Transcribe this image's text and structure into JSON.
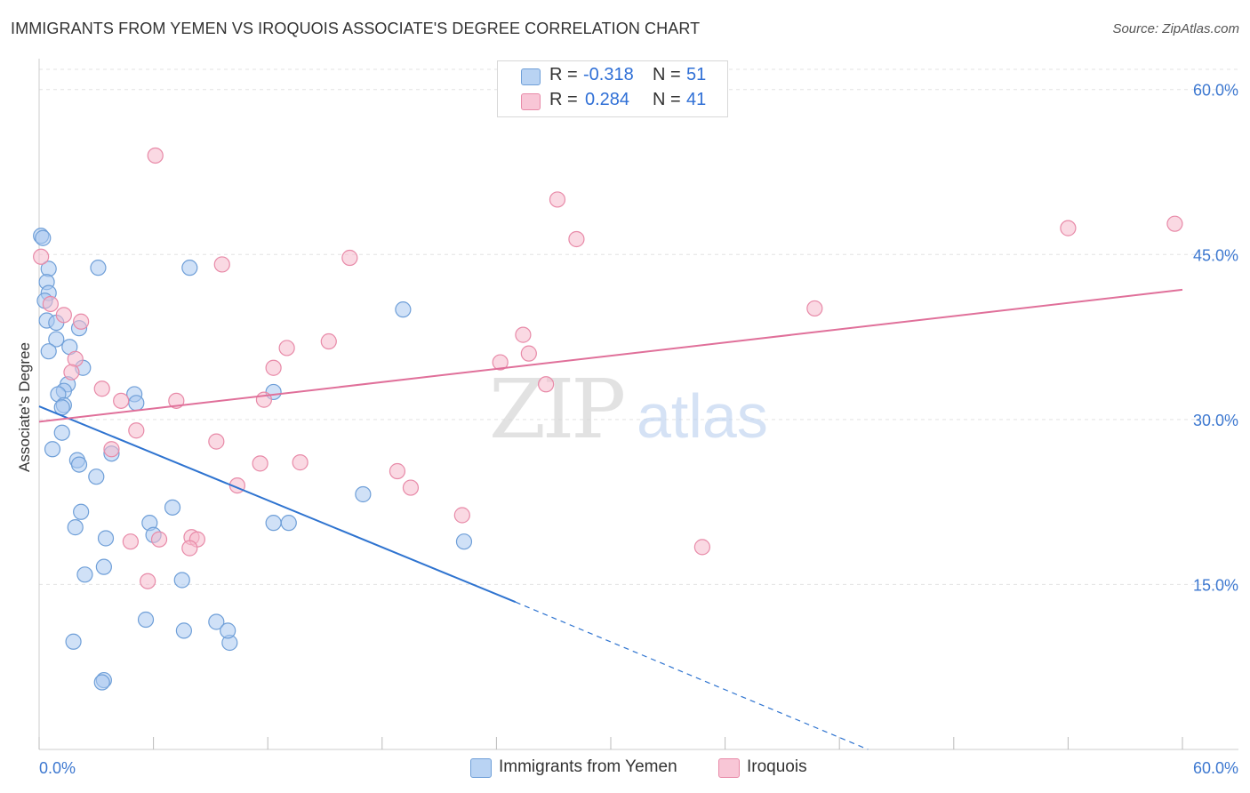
{
  "title": "IMMIGRANTS FROM YEMEN VS IROQUOIS ASSOCIATE'S DEGREE CORRELATION CHART",
  "source": "Source: ZipAtlas.com",
  "watermark": {
    "zip": "ZIP",
    "atlas": "atlas"
  },
  "legend_top": [
    {
      "r_label": "R =",
      "r_value": "-0.318",
      "n_label": "N =",
      "n_value": "51"
    },
    {
      "r_label": "R =",
      "r_value": "0.284",
      "n_label": "N =",
      "n_value": "41"
    }
  ],
  "legend_bottom": [
    {
      "label": "Immigrants from Yemen"
    },
    {
      "label": "Iroquois"
    }
  ],
  "colors": {
    "blue_fill": "#a9c8f0",
    "blue_stroke": "#6f9fd8",
    "blue_line": "#2f74d0",
    "pink_fill": "#f5b9cc",
    "pink_stroke": "#e88aa8",
    "pink_line": "#e0709a",
    "grid": "#e3e3e3",
    "tick_text": "#3d78d0"
  },
  "chart_data": {
    "type": "scatter",
    "title": "IMMIGRANTS FROM YEMEN VS IROQUOIS ASSOCIATE'S DEGREE CORRELATION CHART",
    "xlabel": "",
    "ylabel": "Associate's Degree",
    "xlim": [
      0,
      60
    ],
    "ylim": [
      0,
      62
    ],
    "x_tick_labels": [
      "0.0%",
      "60.0%"
    ],
    "y_ticks": [
      15,
      30,
      45,
      60
    ],
    "y_tick_labels": [
      "15.0%",
      "30.0%",
      "45.0%",
      "60.0%"
    ],
    "grid": true,
    "series": [
      {
        "name": "Immigrants from Yemen",
        "R": -0.318,
        "N": 51,
        "points": [
          [
            0.1,
            46.7
          ],
          [
            0.2,
            46.5
          ],
          [
            0.5,
            43.7
          ],
          [
            0.4,
            42.5
          ],
          [
            0.5,
            41.5
          ],
          [
            0.3,
            40.8
          ],
          [
            0.4,
            39.0
          ],
          [
            0.9,
            38.8
          ],
          [
            2.1,
            38.3
          ],
          [
            0.9,
            37.3
          ],
          [
            1.6,
            36.6
          ],
          [
            0.5,
            36.2
          ],
          [
            2.3,
            34.7
          ],
          [
            1.5,
            33.2
          ],
          [
            1.3,
            32.6
          ],
          [
            1.0,
            32.3
          ],
          [
            1.3,
            31.3
          ],
          [
            1.2,
            31.1
          ],
          [
            1.2,
            28.8
          ],
          [
            0.7,
            27.3
          ],
          [
            2.0,
            26.3
          ],
          [
            2.1,
            25.9
          ],
          [
            3.8,
            26.9
          ],
          [
            3.0,
            24.8
          ],
          [
            2.2,
            21.6
          ],
          [
            1.9,
            20.2
          ],
          [
            3.5,
            19.2
          ],
          [
            5.8,
            20.6
          ],
          [
            6.0,
            19.5
          ],
          [
            7.0,
            22.0
          ],
          [
            7.5,
            15.4
          ],
          [
            3.4,
            16.6
          ],
          [
            2.4,
            15.9
          ],
          [
            5.6,
            11.8
          ],
          [
            7.6,
            10.8
          ],
          [
            9.3,
            11.6
          ],
          [
            10.0,
            9.7
          ],
          [
            1.8,
            9.8
          ],
          [
            3.4,
            6.3
          ],
          [
            3.3,
            6.1
          ],
          [
            3.1,
            43.8
          ],
          [
            7.9,
            43.8
          ],
          [
            5.0,
            32.3
          ],
          [
            5.1,
            31.5
          ],
          [
            12.3,
            32.5
          ],
          [
            12.3,
            20.6
          ],
          [
            13.1,
            20.6
          ],
          [
            19.1,
            40.0
          ],
          [
            17.0,
            23.2
          ],
          [
            22.3,
            18.9
          ],
          [
            9.9,
            10.8
          ]
        ]
      },
      {
        "name": "Iroquois",
        "R": 0.284,
        "N": 41,
        "points": [
          [
            0.1,
            44.8
          ],
          [
            0.6,
            40.5
          ],
          [
            1.3,
            39.5
          ],
          [
            2.2,
            38.9
          ],
          [
            1.9,
            35.5
          ],
          [
            1.7,
            34.3
          ],
          [
            3.3,
            32.8
          ],
          [
            4.3,
            31.7
          ],
          [
            5.1,
            29.0
          ],
          [
            3.8,
            27.3
          ],
          [
            7.2,
            31.7
          ],
          [
            9.3,
            28.0
          ],
          [
            10.4,
            24.0
          ],
          [
            11.6,
            26.0
          ],
          [
            12.3,
            34.7
          ],
          [
            11.8,
            31.8
          ],
          [
            13.0,
            36.5
          ],
          [
            13.7,
            26.1
          ],
          [
            15.2,
            37.1
          ],
          [
            16.3,
            44.7
          ],
          [
            9.6,
            44.1
          ],
          [
            6.1,
            54.0
          ],
          [
            18.8,
            25.3
          ],
          [
            19.5,
            23.8
          ],
          [
            22.2,
            21.3
          ],
          [
            24.2,
            35.2
          ],
          [
            25.4,
            37.7
          ],
          [
            25.7,
            36.0
          ],
          [
            26.6,
            33.2
          ],
          [
            27.2,
            50.0
          ],
          [
            28.2,
            46.4
          ],
          [
            34.8,
            18.4
          ],
          [
            40.7,
            40.1
          ],
          [
            54.0,
            47.4
          ],
          [
            59.6,
            47.8
          ],
          [
            6.3,
            19.1
          ],
          [
            8.0,
            19.3
          ],
          [
            8.3,
            19.1
          ],
          [
            7.9,
            18.3
          ],
          [
            5.7,
            15.3
          ],
          [
            4.8,
            18.9
          ]
        ]
      }
    ],
    "trend_lines": [
      {
        "series": "Immigrants from Yemen",
        "x0": 0,
        "y0": 31.2,
        "x1": 25.0,
        "y1": 13.4,
        "dashed_to_x": 43.5,
        "dashed_to_y": 0.0
      },
      {
        "series": "Iroquois",
        "x0": 0,
        "y0": 29.8,
        "x1": 60,
        "y1": 41.8
      }
    ]
  }
}
